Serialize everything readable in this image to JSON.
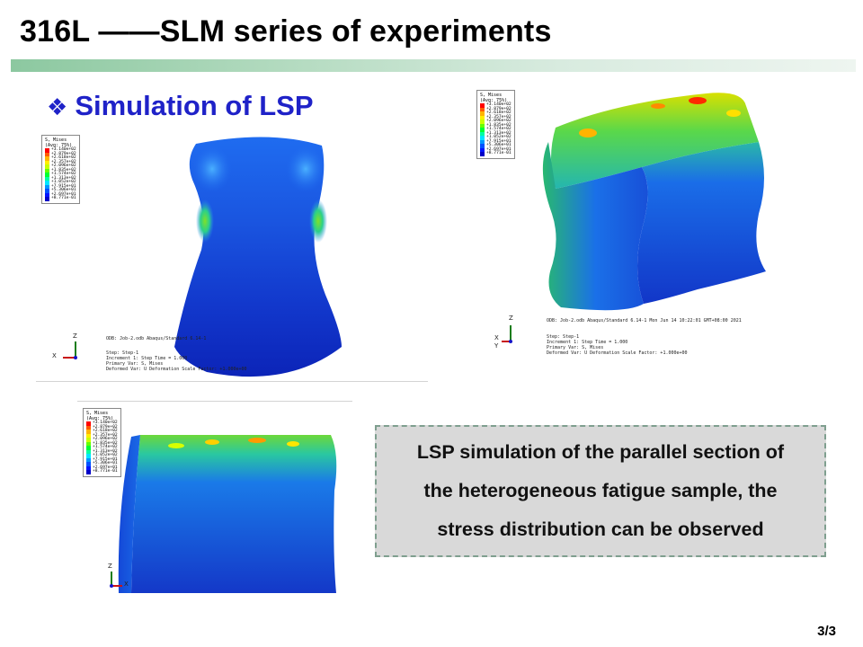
{
  "slide": {
    "title": "316L ——SLM series of experiments",
    "subtitle_bullet": "❖",
    "subtitle": "Simulation of LSP",
    "caption_lines": [
      "LSP simulation of the parallel section of",
      "the heterogeneous fatigue sample, the",
      "stress distribution can be observed"
    ],
    "page_number": "3/3"
  },
  "legend": {
    "title_1": "S, Mises",
    "title_2": "(Avg: 75%)",
    "values": [
      "+3.140e+02",
      "+2.879e+02",
      "+2.618e+02",
      "+2.357e+02",
      "+2.096e+02",
      "+1.835e+02",
      "+1.574e+02",
      "+1.313e+02",
      "+1.052e+02",
      "+7.915e+01",
      "+5.306e+01",
      "+2.697e+01",
      "+8.771e-01"
    ],
    "colors": [
      "#ff0000",
      "#ff5a00",
      "#ffb400",
      "#ffee00",
      "#c8ff00",
      "#64ff00",
      "#00ff32",
      "#00ffa0",
      "#00e6ff",
      "#0096ff",
      "#0050ff",
      "#0014ff",
      "#0000c8"
    ]
  },
  "panel1": {
    "odb": "ODB: Job-2.odb    Abaqus/Standard 6.14-1",
    "step": "Step: Step-1",
    "increment": "Increment    1: Step Time =    1.000",
    "primary": "Primary Var: S, Mises",
    "deformed": "Deformed Var: U   Deformation Scale Factor: +1.000e+00",
    "axis_z": "Z",
    "axis_x": "X"
  },
  "panel2": {
    "odb": "ODB: Job-2.odb    Abaqus/Standard 6.14-1    Mon Jun 14 10:22:01 GMT+08:00 2021",
    "step": "Step: Step-1",
    "increment": "Increment    1: Step Time =    1.000",
    "primary": "Primary Var: S, Mises",
    "deformed": "Deformed Var: U   Deformation Scale Factor: +1.000e+00",
    "axis_z": "Z",
    "axis_x": "X",
    "axis_y": "Y"
  },
  "panel3": {
    "axis_z": "Z",
    "axis_x": "X"
  }
}
